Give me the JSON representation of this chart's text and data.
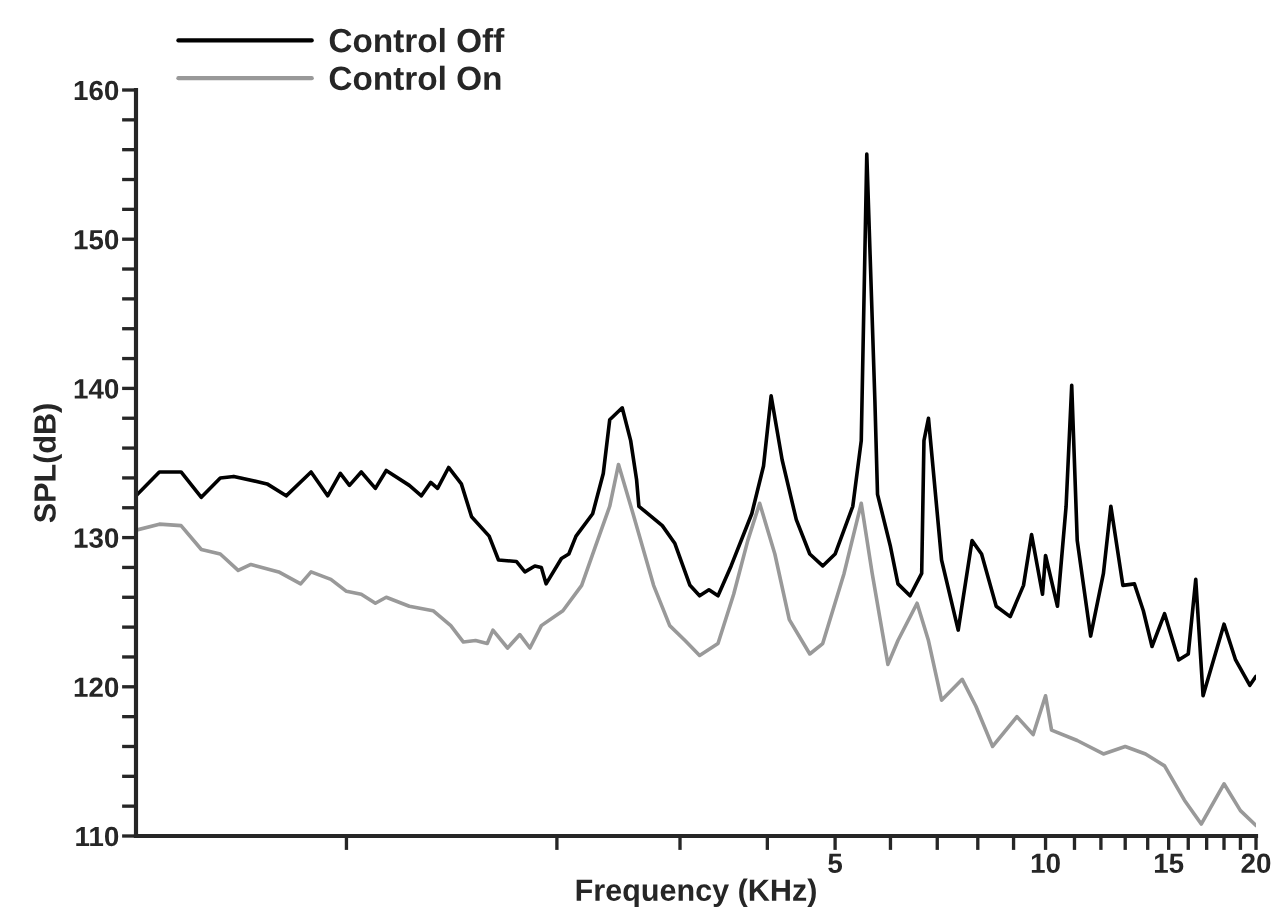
{
  "chart_data": {
    "type": "line",
    "xlabel": "Frequency (KHz)",
    "ylabel": "SPL(dB)",
    "log": "x",
    "legend": "top left",
    "grid": false,
    "line_style": "solid",
    "marker": "none",
    "xlim": [
      0.5,
      20
    ],
    "ylim": [
      110,
      160
    ],
    "xticks": [
      {
        "value": 1,
        "label": null
      },
      {
        "value": 2,
        "label": null
      },
      {
        "value": 3,
        "label": null
      },
      {
        "value": 4,
        "label": null
      },
      5,
      {
        "value": 6,
        "label": null
      },
      {
        "value": 7,
        "label": null
      },
      {
        "value": 8,
        "label": null
      },
      {
        "value": 9,
        "label": null
      },
      10,
      {
        "value": 11,
        "label": null
      },
      {
        "value": 12,
        "label": null
      },
      {
        "value": 13,
        "label": null
      },
      {
        "value": 14,
        "label": null
      },
      15,
      {
        "value": 16,
        "label": null
      },
      {
        "value": 17,
        "label": null
      },
      {
        "value": 18,
        "label": null
      },
      {
        "value": 19,
        "label": null
      },
      20
    ],
    "yticks": [
      110,
      {
        "value": 112,
        "label": null
      },
      {
        "value": 114,
        "label": null
      },
      {
        "value": 116,
        "label": null
      },
      {
        "value": 118,
        "label": null
      },
      120,
      {
        "value": 122,
        "label": null
      },
      {
        "value": 124,
        "label": null
      },
      {
        "value": 126,
        "label": null
      },
      {
        "value": 128,
        "label": null
      },
      130,
      {
        "value": 132,
        "label": null
      },
      {
        "value": 134,
        "label": null
      },
      {
        "value": 136,
        "label": null
      },
      {
        "value": 138,
        "label": null
      },
      140,
      {
        "value": 142,
        "label": null
      },
      {
        "value": 144,
        "label": null
      },
      {
        "value": 146,
        "label": null
      },
      {
        "value": 148,
        "label": null
      },
      150,
      {
        "value": 152,
        "label": null
      },
      {
        "value": 154,
        "label": null
      },
      {
        "value": 156,
        "label": null
      },
      {
        "value": 158,
        "label": null
      },
      160
    ],
    "series": [
      {
        "name": "Control Off",
        "color": "#000000",
        "x": [
          0.5,
          0.54,
          0.58,
          0.62,
          0.66,
          0.69,
          0.77,
          0.82,
          0.89,
          0.94,
          0.98,
          1.01,
          1.05,
          1.1,
          1.14,
          1.23,
          1.28,
          1.32,
          1.35,
          1.4,
          1.46,
          1.51,
          1.6,
          1.65,
          1.75,
          1.8,
          1.86,
          1.9,
          1.93,
          2.03,
          2.08,
          2.13,
          2.25,
          2.33,
          2.38,
          2.48,
          2.55,
          2.6,
          2.62,
          2.83,
          2.95,
          3.1,
          3.2,
          3.3,
          3.4,
          3.55,
          3.8,
          3.95,
          4.05,
          4.2,
          4.4,
          4.6,
          4.8,
          5.0,
          5.3,
          5.45,
          5.55,
          5.7,
          5.75,
          6.0,
          6.15,
          6.4,
          6.65,
          6.7,
          6.8,
          7.1,
          7.5,
          7.85,
          8.1,
          8.5,
          8.9,
          9.3,
          9.55,
          9.9,
          10,
          10.4,
          10.7,
          10.9,
          11.1,
          11.6,
          12.1,
          12.4,
          12.9,
          13.4,
          13.8,
          14.2,
          14.8,
          15.5,
          16,
          16.4,
          16.8,
          18,
          18.7,
          19.6,
          20
        ],
        "values": [
          132.8,
          134.4,
          134.4,
          132.7,
          134,
          134.1,
          133.6,
          132.8,
          134.4,
          132.8,
          134.3,
          133.5,
          134.4,
          133.3,
          134.5,
          133.5,
          132.8,
          133.7,
          133.3,
          134.7,
          133.6,
          131.4,
          130.1,
          128.5,
          128.4,
          127.7,
          128.1,
          128,
          126.9,
          128.6,
          128.9,
          130.1,
          131.6,
          134.3,
          137.9,
          138.7,
          136.5,
          133.9,
          132.1,
          130.8,
          129.6,
          126.8,
          126.1,
          126.5,
          126.1,
          128.1,
          131.6,
          134.8,
          139.5,
          135.2,
          131.2,
          128.9,
          128.1,
          128.9,
          132.1,
          136.5,
          155.7,
          139.2,
          132.9,
          129.4,
          126.9,
          126.1,
          127.6,
          136.5,
          138,
          128.5,
          123.8,
          129.8,
          128.9,
          125.4,
          124.7,
          126.8,
          130.2,
          126.2,
          128.8,
          125.4,
          132.1,
          140.2,
          129.8,
          123.4,
          127.6,
          132.1,
          126.8,
          126.9,
          125.1,
          122.7,
          124.9,
          121.8,
          122.2,
          127.2,
          119.4,
          124.2,
          121.8,
          120.1,
          120.7
        ]
      },
      {
        "name": "Control On",
        "color": "#999999",
        "x": [
          0.5,
          0.54,
          0.58,
          0.62,
          0.66,
          0.7,
          0.73,
          0.8,
          0.86,
          0.89,
          0.95,
          1.0,
          1.05,
          1.1,
          1.14,
          1.23,
          1.33,
          1.41,
          1.47,
          1.53,
          1.59,
          1.62,
          1.7,
          1.77,
          1.83,
          1.9,
          2.04,
          2.17,
          2.27,
          2.38,
          2.45,
          2.57,
          2.75,
          2.9,
          3.05,
          3.2,
          3.4,
          3.58,
          3.75,
          3.9,
          4.1,
          4.3,
          4.6,
          4.8,
          5.15,
          5.45,
          5.65,
          5.95,
          6.15,
          6.55,
          6.8,
          7.1,
          7.6,
          7.95,
          8.4,
          9.1,
          9.6,
          10,
          10.2,
          11.1,
          12.1,
          13,
          13.9,
          14.8,
          15.8,
          16.7,
          18,
          19,
          20
        ],
        "values": [
          130.5,
          130.9,
          130.8,
          129.2,
          128.9,
          127.8,
          128.2,
          127.7,
          126.9,
          127.7,
          127.2,
          126.4,
          126.2,
          125.6,
          126,
          125.4,
          125.1,
          124.1,
          123,
          123.1,
          122.9,
          123.8,
          122.6,
          123.5,
          122.6,
          124.1,
          125.1,
          126.8,
          129.4,
          132.1,
          134.9,
          131.6,
          126.8,
          124.1,
          123.1,
          122.1,
          122.9,
          126.2,
          129.8,
          132.3,
          128.9,
          124.5,
          122.2,
          122.9,
          127.6,
          132.3,
          127.6,
          121.5,
          123.1,
          125.6,
          123.1,
          119.1,
          120.5,
          118.7,
          116,
          118,
          116.8,
          119.4,
          117.1,
          116.4,
          115.5,
          116,
          115.5,
          114.7,
          112.4,
          110.8,
          113.5,
          111.7,
          110.7
        ]
      }
    ]
  }
}
